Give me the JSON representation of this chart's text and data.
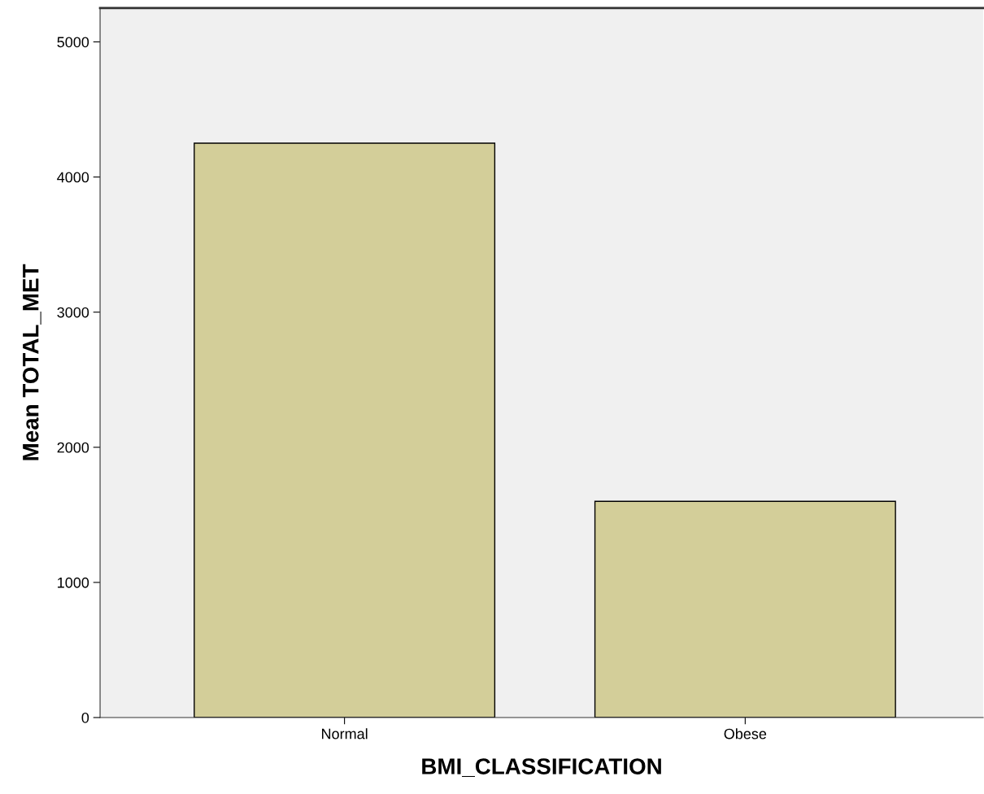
{
  "chart_data": {
    "type": "bar",
    "xlabel": "BMI_CLASSIFICATION",
    "ylabel": "Mean TOTAL_MET",
    "categories": [
      "Normal",
      "Obese"
    ],
    "values": [
      4250,
      1600
    ],
    "color": "#d3ce99",
    "ylim": [
      0,
      5250
    ],
    "yticks": [
      0,
      1000,
      2000,
      3000,
      4000,
      5000
    ],
    "grid": false,
    "legend": false
  }
}
